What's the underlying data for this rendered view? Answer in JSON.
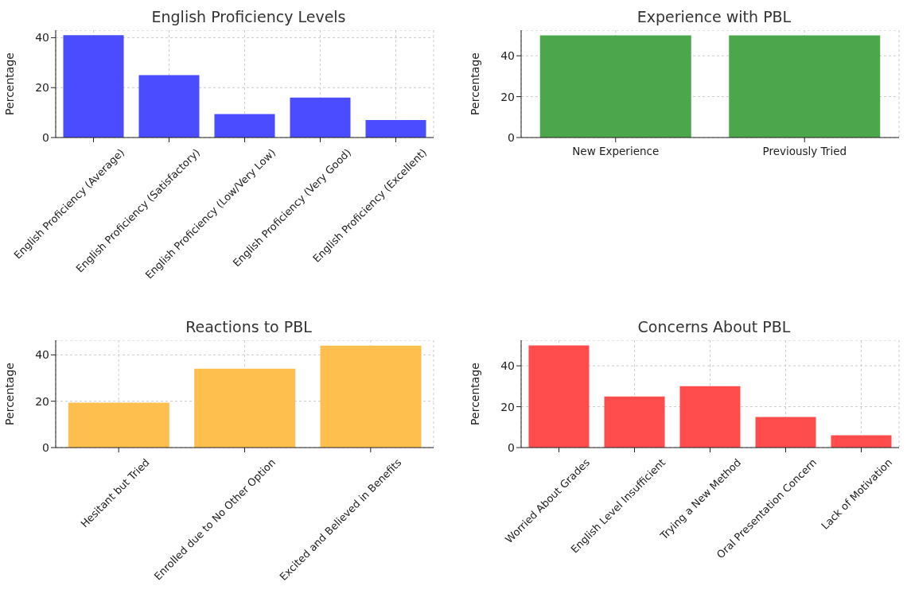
{
  "chart_data": [
    {
      "type": "bar",
      "title": "English Proficiency Levels",
      "ylabel": "Percentage",
      "categories": [
        "English Proficiency (Average)",
        "English Proficiency (Satisfactory)",
        "English Proficiency (Low/Very Low)",
        "English Proficiency (Very Good)",
        "English Proficiency (Excellent)"
      ],
      "values": [
        41,
        25,
        9.4,
        16,
        7
      ],
      "color": "#4b4bff",
      "ylim": [
        0,
        43
      ],
      "yticks": [
        0,
        20,
        40
      ],
      "grid": true
    },
    {
      "type": "bar",
      "title": "Experience with PBL",
      "ylabel": "Percentage",
      "categories": [
        "New Experience",
        "Previously Tried"
      ],
      "values": [
        50,
        50
      ],
      "color": "#4ca64c",
      "ylim": [
        0,
        52.5
      ],
      "yticks": [
        0,
        20,
        40
      ],
      "grid": true
    },
    {
      "type": "bar",
      "title": "Reactions to PBL",
      "ylabel": "Percentage",
      "categories": [
        "Hesitant but Tried",
        "Enrolled due to No Other Option",
        "Excited and Believed in Benefits"
      ],
      "values": [
        19.4,
        34,
        44
      ],
      "color": "#ffbf4f",
      "ylim": [
        0,
        46.3
      ],
      "yticks": [
        0,
        20,
        40
      ],
      "grid": true
    },
    {
      "type": "bar",
      "title": "Concerns About PBL",
      "ylabel": "Percentage",
      "categories": [
        "Worried About Grades",
        "English Level Insufficient",
        "Trying a New Method",
        "Oral Presentation Concern",
        "Lack of Motivation"
      ],
      "values": [
        50,
        25,
        30,
        15,
        6
      ],
      "color": "#ff4c4c",
      "ylim": [
        0,
        52.5
      ],
      "yticks": [
        0,
        20,
        40
      ],
      "grid": true
    }
  ]
}
